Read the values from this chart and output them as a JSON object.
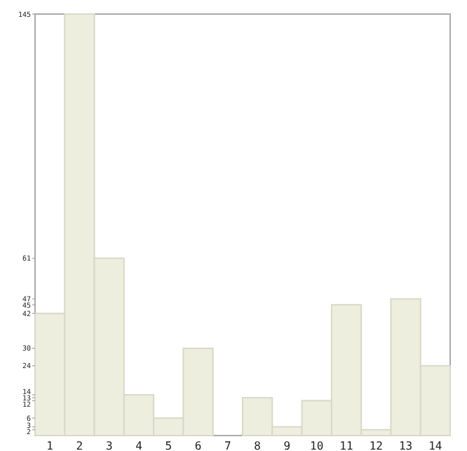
{
  "chart_data": {
    "type": "bar",
    "categories": [
      "1",
      "2",
      "3",
      "4",
      "5",
      "6",
      "7",
      "8",
      "9",
      "10",
      "11",
      "12",
      "13",
      "14"
    ],
    "values": [
      42,
      145,
      61,
      14,
      6,
      30,
      0,
      13,
      3,
      12,
      45,
      2,
      47,
      24
    ],
    "color": "#eeeedf",
    "ylim": [
      0,
      145
    ],
    "yticks": [
      2,
      3,
      6,
      12,
      13,
      14,
      24,
      30,
      42,
      45,
      47,
      61,
      145
    ],
    "grid": false
  }
}
